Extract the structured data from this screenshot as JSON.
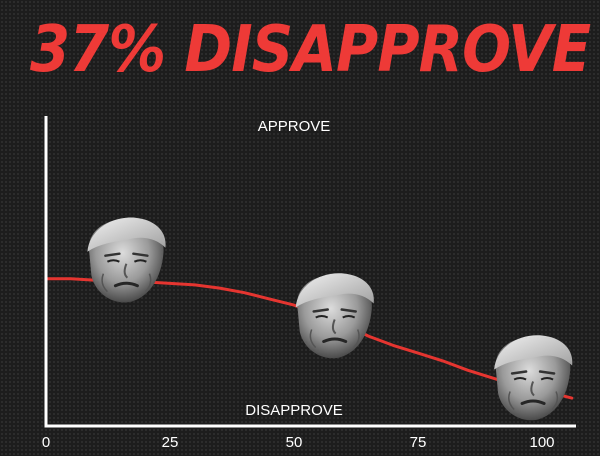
{
  "headline": "37% DISAPPROVE",
  "chart_data": {
    "type": "line",
    "title": "37% DISAPPROVE",
    "top_label": "APPROVE",
    "bottom_label": "DISAPPROVE",
    "xlim": [
      0,
      100
    ],
    "x_ticks": [
      "0",
      "25",
      "50",
      "75",
      "100"
    ],
    "x_tick_values": [
      0,
      25,
      50,
      75,
      100
    ],
    "ylim": [
      0,
      1
    ],
    "x": [
      0,
      5,
      10,
      15,
      20,
      25,
      30,
      35,
      40,
      45,
      50,
      55,
      60,
      65,
      70,
      75,
      80,
      85,
      90,
      95,
      100,
      106
    ],
    "y": [
      0.475,
      0.475,
      0.47,
      0.47,
      0.465,
      0.46,
      0.455,
      0.445,
      0.43,
      0.41,
      0.39,
      0.36,
      0.33,
      0.29,
      0.26,
      0.235,
      0.21,
      0.18,
      0.155,
      0.13,
      0.115,
      0.09
    ],
    "markers": [
      {
        "x": 16,
        "y": 0.53,
        "icon": "trump-face-icon"
      },
      {
        "x": 58,
        "y": 0.35,
        "icon": "trump-face-icon"
      },
      {
        "x": 98,
        "y": 0.15,
        "icon": "trump-face-icon"
      }
    ],
    "line_color": "#e53530",
    "axis_color": "#ffffff",
    "grid": false
  }
}
